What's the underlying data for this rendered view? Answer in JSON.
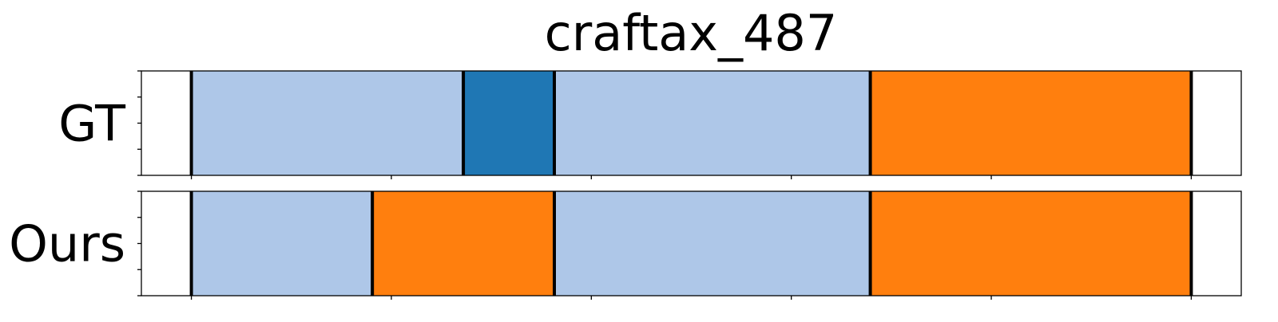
{
  "chart_data": {
    "type": "segmentation-timeline",
    "title": "craftax_487",
    "xlim": [
      0,
      1100
    ],
    "x_ticks": [
      50,
      250,
      450,
      650,
      850,
      1050
    ],
    "rows": [
      {
        "label": "GT",
        "boundaries": [
          50,
          322,
          413,
          729,
          1050
        ],
        "segments": [
          {
            "start": 50,
            "end": 322,
            "color": "#aec7e8"
          },
          {
            "start": 322,
            "end": 413,
            "color": "#1f77b4"
          },
          {
            "start": 413,
            "end": 729,
            "color": "#aec7e8"
          },
          {
            "start": 729,
            "end": 1050,
            "color": "#ff7f0e"
          }
        ]
      },
      {
        "label": "Ours",
        "boundaries": [
          50,
          231,
          413,
          729,
          1050
        ],
        "segments": [
          {
            "start": 50,
            "end": 231,
            "color": "#aec7e8"
          },
          {
            "start": 231,
            "end": 413,
            "color": "#ff7f0e"
          },
          {
            "start": 413,
            "end": 729,
            "color": "#aec7e8"
          },
          {
            "start": 729,
            "end": 1050,
            "color": "#ff7f0e"
          }
        ]
      }
    ]
  }
}
